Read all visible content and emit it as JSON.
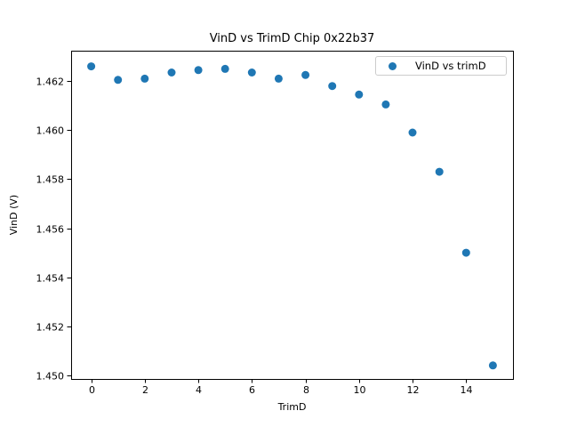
{
  "figure": {
    "background": "#ffffff"
  },
  "chart_data": {
    "type": "scatter",
    "title": "VinD vs TrimD Chip 0x22b37",
    "xlabel": "TrimD",
    "ylabel": "VinD (V)",
    "legend": {
      "position": "upper right",
      "entries": [
        "VinD vs trimD"
      ]
    },
    "marker_color": "#1f77b4",
    "axis_color": "#000000",
    "x": [
      0,
      1,
      2,
      3,
      4,
      5,
      6,
      7,
      8,
      9,
      10,
      11,
      12,
      13,
      14,
      15
    ],
    "y": [
      1.4626,
      1.46205,
      1.4621,
      1.46235,
      1.46245,
      1.4625,
      1.46235,
      1.4621,
      1.46225,
      1.4618,
      1.46145,
      1.46105,
      1.4599,
      1.4583,
      1.455,
      1.4504
    ],
    "xlim": [
      -0.75,
      15.75
    ],
    "ylim": [
      1.44985,
      1.46324
    ],
    "xticks": {
      "values": [
        0,
        2,
        4,
        6,
        8,
        10,
        12,
        14
      ],
      "labels": [
        "0",
        "2",
        "4",
        "6",
        "8",
        "10",
        "12",
        "14"
      ]
    },
    "yticks": {
      "values": [
        1.45,
        1.452,
        1.454,
        1.456,
        1.458,
        1.46,
        1.462
      ],
      "labels": [
        "1.450",
        "1.452",
        "1.454",
        "1.456",
        "1.458",
        "1.460",
        "1.462"
      ]
    },
    "grid": false
  }
}
